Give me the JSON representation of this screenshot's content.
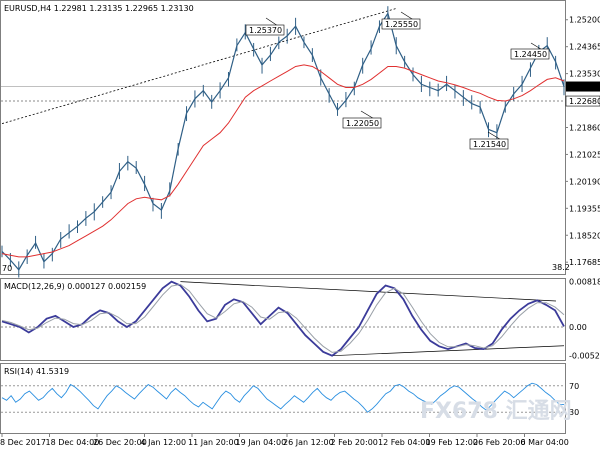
{
  "chart_data": {
    "type": "line",
    "title": "EURUSD,H4  1.22981 1.23135 1.22965 1.23130",
    "x_tick_labels": [
      "8 Dec 2017",
      "18 Dec 04:00",
      "26 Dec 20:00",
      "4 Jan 12:00",
      "11 Jan 20:00",
      "19 Jan 04:00",
      "26 Jan 12:00",
      "2 Feb 20:00",
      "12 Feb 04:00",
      "19 Feb 12:00",
      "26 Feb 20:00",
      "6 Mar 04:00"
    ],
    "price": {
      "y_tick_labels": [
        "1.25200",
        "1.24365",
        "1.23530",
        "1.22695",
        "1.21860",
        "1.21025",
        "1.20190",
        "1.19355",
        "1.18520",
        "1.17685"
      ],
      "ylim": [
        1.1735,
        1.2575
      ],
      "current_price_label": "1.23130",
      "current_price": 1.2313,
      "support_level_label": "1.22680",
      "support_level": 1.2268,
      "corner_label_left": "70",
      "corner_label_right": "38.2",
      "annotations": [
        {
          "text": "1.25370",
          "price": 1.2537
        },
        {
          "text": "1.25550",
          "price": 1.2555
        },
        {
          "text": "1.22050",
          "price": 1.2205
        },
        {
          "text": "1.24450",
          "price": 1.2445
        },
        {
          "text": "1.21540",
          "price": 1.2154
        }
      ],
      "series": [
        {
          "role": "price",
          "color": "#2f5f86",
          "values": [
            1.1802,
            1.1775,
            1.1745,
            1.179,
            1.1828,
            1.177,
            1.1795,
            1.184,
            1.186,
            1.188,
            1.1905,
            1.1925,
            1.1955,
            1.1985,
            1.205,
            1.208,
            1.206,
            1.201,
            1.195,
            1.193,
            1.199,
            1.212,
            1.223,
            1.2275,
            1.23,
            1.2265,
            1.23,
            1.234,
            1.244,
            1.248,
            1.243,
            1.238,
            1.241,
            1.245,
            1.247,
            1.25,
            1.245,
            1.241,
            1.234,
            1.229,
            1.224,
            1.227,
            1.231,
            1.238,
            1.243,
            1.25,
            1.254,
            1.244,
            1.239,
            1.235,
            1.232,
            1.231,
            1.23,
            1.232,
            1.23,
            1.228,
            1.226,
            1.225,
            1.218,
            1.217,
            1.225,
            1.229,
            1.232,
            1.237,
            1.242,
            1.244,
            1.239,
            1.2313
          ]
        },
        {
          "role": "moving-average",
          "color": "#e03030",
          "values": [
            1.1795,
            1.179,
            1.1785,
            1.1785,
            1.179,
            1.1795,
            1.18,
            1.181,
            1.182,
            1.1835,
            1.185,
            1.1865,
            1.188,
            1.19,
            1.1925,
            1.195,
            1.1965,
            1.197,
            1.1965,
            1.1962,
            1.1975,
            1.201,
            1.205,
            1.209,
            1.213,
            1.215,
            1.217,
            1.22,
            1.224,
            1.228,
            1.23,
            1.2315,
            1.233,
            1.2345,
            1.236,
            1.2375,
            1.238,
            1.2375,
            1.236,
            1.234,
            1.232,
            1.231,
            1.231,
            1.232,
            1.2335,
            1.2355,
            1.2375,
            1.2375,
            1.237,
            1.236,
            1.235,
            1.234,
            1.233,
            1.2325,
            1.2318,
            1.231,
            1.23,
            1.2292,
            1.228,
            1.227,
            1.2268,
            1.2275,
            1.2285,
            1.23,
            1.2318,
            1.2335,
            1.234,
            1.233
          ]
        }
      ]
    },
    "macd": {
      "title": "MACD(12,26,9) 0.000127 0.002159",
      "y_tick_labels": [
        "0.008182",
        "0.00",
        "-0.005223"
      ],
      "ylim": [
        -0.0058,
        0.0085
      ],
      "series": [
        {
          "role": "signal",
          "color": "#3b3b9a",
          "values": [
            0.001,
            0.0005,
            0.0,
            -0.001,
            0.0,
            0.0015,
            0.002,
            0.001,
            0.0,
            0.0005,
            0.002,
            0.003,
            0.0025,
            0.001,
            0.0,
            0.001,
            0.003,
            0.005,
            0.007,
            0.0082,
            0.0075,
            0.0055,
            0.003,
            0.001,
            0.0015,
            0.004,
            0.005,
            0.0045,
            0.0025,
            0.0005,
            0.002,
            0.0035,
            0.0025,
            0.0005,
            -0.0015,
            -0.003,
            -0.0045,
            -0.0052,
            -0.004,
            -0.002,
            0.0,
            0.003,
            0.006,
            0.0075,
            0.007,
            0.005,
            0.002,
            -0.0005,
            -0.0025,
            -0.0035,
            -0.004,
            -0.0035,
            -0.003,
            -0.0038,
            -0.004,
            -0.003,
            -0.0005,
            0.0015,
            0.003,
            0.0042,
            0.0048,
            0.004,
            0.003,
            0.0001
          ]
        },
        {
          "role": "macd-line",
          "color": "#9aa0a8",
          "values": [
            0.0012,
            0.0008,
            0.0002,
            -0.0005,
            -0.0002,
            0.0008,
            0.0016,
            0.0014,
            0.0006,
            0.0004,
            0.0012,
            0.0024,
            0.0026,
            0.0018,
            0.0006,
            0.0006,
            0.0018,
            0.0038,
            0.0058,
            0.0074,
            0.0077,
            0.0065,
            0.0044,
            0.0024,
            0.0016,
            0.0028,
            0.0042,
            0.0046,
            0.0036,
            0.0018,
            0.0014,
            0.0026,
            0.0028,
            0.0016,
            -0.0002,
            -0.002,
            -0.0035,
            -0.0046,
            -0.0044,
            -0.003,
            -0.0012,
            0.0012,
            0.004,
            0.0062,
            0.007,
            0.006,
            0.0036,
            0.001,
            -0.0012,
            -0.0028,
            -0.0036,
            -0.0036,
            -0.0032,
            -0.0034,
            -0.0038,
            -0.0034,
            -0.0018,
            0.0002,
            0.002,
            0.0034,
            0.0044,
            0.0044,
            0.0036,
            0.0022
          ]
        }
      ]
    },
    "rsi": {
      "title": "RSI(14) 41.5319",
      "y_tick_labels": [
        "70",
        "30"
      ],
      "ylim": [
        0,
        100
      ],
      "levels": [
        70,
        30
      ],
      "series": [
        {
          "role": "rsi",
          "color": "#2a8fe0",
          "values": [
            52,
            48,
            55,
            45,
            50,
            58,
            62,
            55,
            48,
            52,
            60,
            66,
            58,
            52,
            60,
            72,
            68,
            62,
            55,
            48,
            40,
            35,
            45,
            55,
            62,
            70,
            66,
            60,
            55,
            50,
            58,
            65,
            72,
            68,
            62,
            56,
            50,
            60,
            66,
            60,
            55,
            48,
            42,
            38,
            45,
            40,
            35,
            45,
            55,
            62,
            58,
            50,
            45,
            55,
            62,
            70,
            66,
            58,
            50,
            45,
            40,
            35,
            42,
            48,
            55,
            50,
            45,
            52,
            60,
            66,
            58,
            52,
            48,
            55,
            60,
            62,
            56,
            50,
            45,
            38,
            30,
            35,
            42,
            50,
            58,
            62,
            70,
            72,
            68,
            62,
            58,
            52,
            48,
            45,
            42,
            48,
            55,
            60,
            66,
            70,
            68,
            62,
            56,
            50,
            45,
            38,
            33,
            40,
            48,
            55,
            62,
            58,
            52,
            58,
            64,
            70,
            74,
            72,
            66,
            60,
            55,
            48,
            42,
            41.5
          ]
        }
      ]
    }
  },
  "watermark": {
    "text": "FX678 汇通网",
    "color": "#d7dde6"
  }
}
